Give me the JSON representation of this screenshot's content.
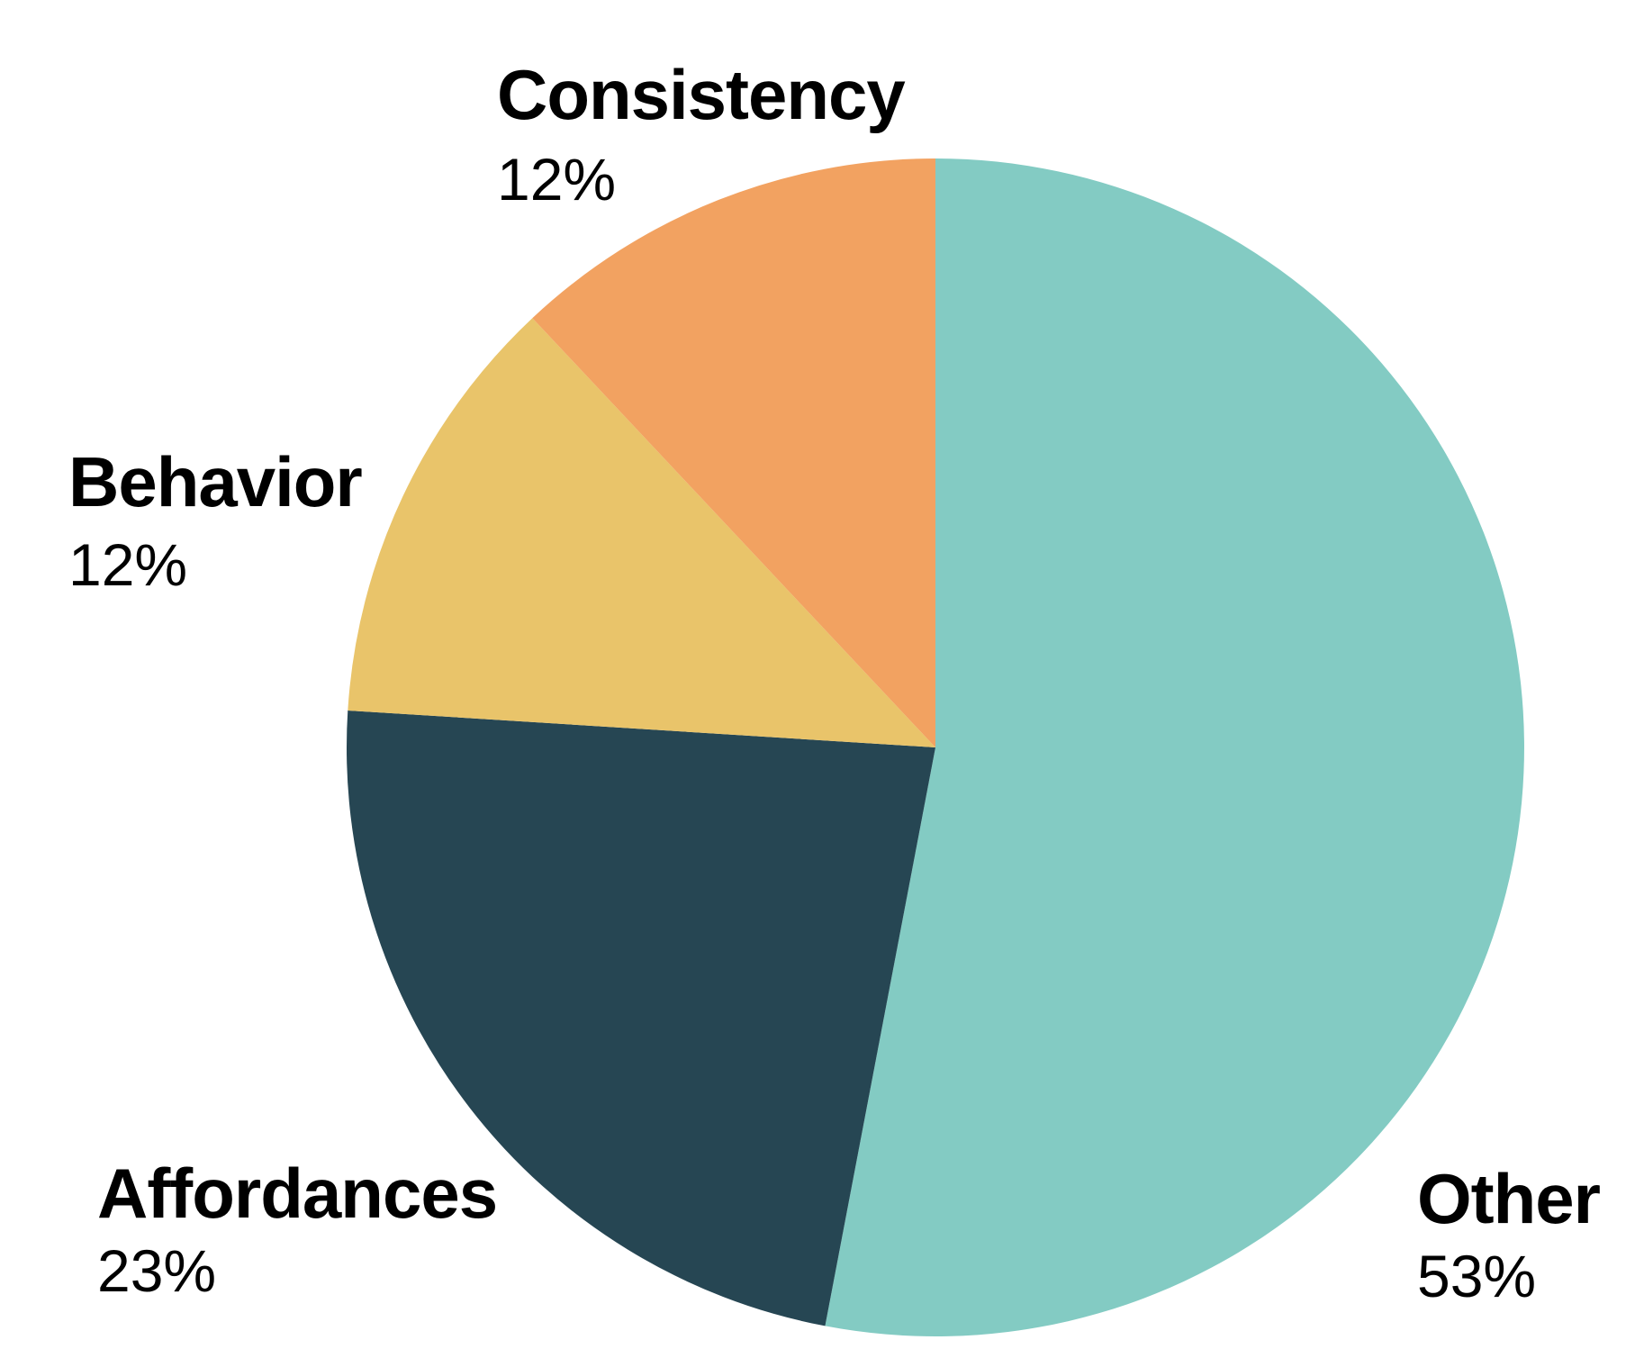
{
  "chart_data": {
    "type": "pie",
    "title": "",
    "start": "12 o'clock, clockwise",
    "slices": [
      {
        "label": "Other",
        "value": 53,
        "value_label": "53%",
        "color": "#83cbc3"
      },
      {
        "label": "Affordances",
        "value": 23,
        "value_label": "23%",
        "color": "#264653"
      },
      {
        "label": "Behavior",
        "value": 12,
        "value_label": "12%",
        "color": "#e9c46a"
      },
      {
        "label": "Consistency",
        "value": 12,
        "value_label": "12%",
        "color": "#f2a261"
      }
    ]
  }
}
